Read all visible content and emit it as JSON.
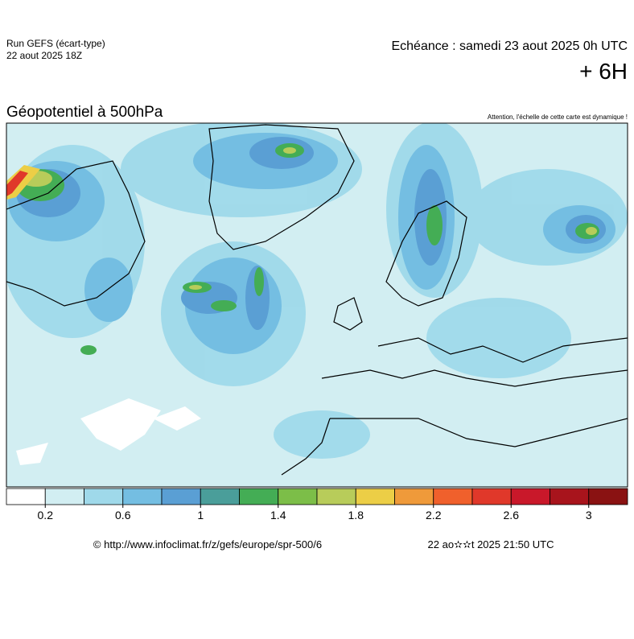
{
  "header": {
    "run": "Run GEFS (écart-type)",
    "run_date": "22 aout 2025 18Z",
    "valid": "Echéance : samedi 23 aout 2025 0h UTC",
    "lead": "+ 6H"
  },
  "map": {
    "title": "Géopotentiel à 500hPa",
    "note": "Attention, l'échelle de cette carte est dynamique !"
  },
  "colorbar": {
    "range": [
      0,
      3.2
    ],
    "ticks": [
      0.2,
      0.6,
      1,
      1.4,
      1.8,
      2.2,
      2.6,
      3
    ],
    "colors": [
      "#ffffff",
      "#d2eef2",
      "#9fd9ea",
      "#74bee2",
      "#5a9fd4",
      "#4a9e9a",
      "#44ad55",
      "#7cbe48",
      "#b8cc5a",
      "#ecce46",
      "#ef9a3a",
      "#f0602c",
      "#e0382a",
      "#c9182a",
      "#a8141c",
      "#8a1212"
    ]
  },
  "footer": {
    "source": "© http://www.infoclimat.fr/z/gefs/europe/spr-500/6",
    "timestamp": "22 ao✫✫t 2025 21:50 UTC"
  }
}
